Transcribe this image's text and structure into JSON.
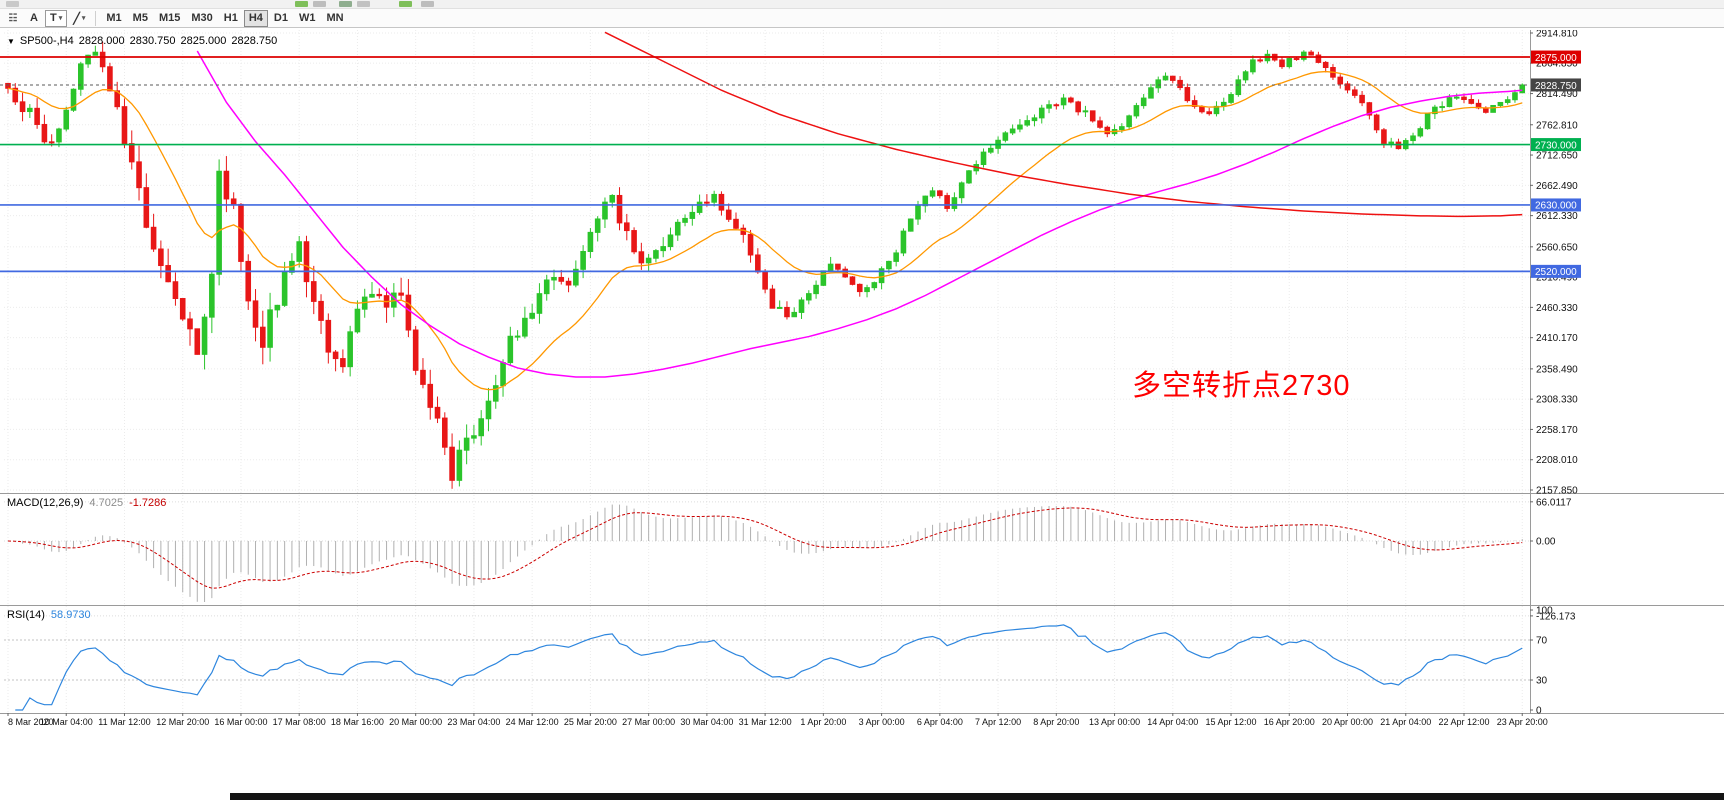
{
  "toolbar": {
    "grid_glyph": "☷",
    "caret": "▾",
    "a_label": "A",
    "t_label": "T",
    "line_glyph": "╱",
    "timeframes": [
      {
        "label": "M1",
        "active": false
      },
      {
        "label": "M5",
        "active": false
      },
      {
        "label": "M15",
        "active": false
      },
      {
        "label": "M30",
        "active": false
      },
      {
        "label": "H1",
        "active": false
      },
      {
        "label": "H4",
        "active": true
      },
      {
        "label": "D1",
        "active": false
      },
      {
        "label": "W1",
        "active": false
      },
      {
        "label": "MN",
        "active": false
      }
    ]
  },
  "header": {
    "collapse_glyph": "▼",
    "symbol": "SP500-,H4",
    "open": "2828.000",
    "high": "2830.750",
    "low": "2825.000",
    "close": "2828.750"
  },
  "annotation": {
    "text": "多空转折点2730",
    "color": "#fe0000"
  },
  "indicators": {
    "macd": {
      "title": "MACD(12,26,9)",
      "main": "4.7025",
      "signal": "-1.7286"
    },
    "rsi": {
      "title": "RSI(14)",
      "value": "58.9730"
    }
  },
  "chart_data": {
    "type": "candlestick",
    "symbol": "SP500-",
    "timeframe": "H4",
    "bars": 209,
    "last_close": 2828.75,
    "colors": {
      "up": "#2bc42b",
      "down": "#e81717",
      "grid": "#ebebeb",
      "separator": "#9a9a9a",
      "axis_text": "#111111",
      "current_line": "#5a5a5a",
      "current_box": "#454545"
    },
    "y_axis": {
      "max": 2914.81,
      "min": 2157.85,
      "labels": [
        "2914.810",
        "2864.850",
        "2814.490",
        "2762.810",
        "2712.650",
        "2662.490",
        "2612.330",
        "2560.650",
        "2510.490",
        "2460.330",
        "2410.170",
        "2358.490",
        "2308.330",
        "2258.170",
        "2208.010",
        "2157.850"
      ]
    },
    "x_axis": {
      "labels": [
        "8 Mar 2020",
        "10 Mar 04:00",
        "11 Mar 12:00",
        "12 Mar 20:00",
        "16 Mar 00:00",
        "17 Mar 08:00",
        "18 Mar 16:00",
        "20 Mar 00:00",
        "23 Mar 04:00",
        "24 Mar 12:00",
        "25 Mar 20:00",
        "27 Mar 00:00",
        "30 Mar 04:00",
        "31 Mar 12:00",
        "1 Apr 20:00",
        "3 Apr 00:00",
        "6 Apr 04:00",
        "7 Apr 12:00",
        "8 Apr 20:00",
        "13 Apr 00:00",
        "14 Apr 04:00",
        "15 Apr 12:00",
        "16 Apr 20:00",
        "20 Apr 00:00",
        "21 Apr 04:00",
        "22 Apr 12:00",
        "23 Apr 20:00"
      ]
    },
    "hlines": [
      {
        "price": 2875.0,
        "label": "2875.000",
        "color": "#dd0000"
      },
      {
        "price": 2730.0,
        "label": "2730.000",
        "color": "#00b050"
      },
      {
        "price": 2630.0,
        "label": "2630.000",
        "color": "#4169e1"
      },
      {
        "price": 2520.0,
        "label": "2520.000",
        "color": "#4169e1"
      }
    ],
    "current_price": {
      "value": 2828.75,
      "label": "2828.750"
    },
    "price_path": [
      [
        0,
        2815
      ],
      [
        3,
        2780
      ],
      [
        5,
        2725
      ],
      [
        7,
        2752
      ],
      [
        9,
        2830
      ],
      [
        11,
        2886
      ],
      [
        13,
        2856
      ],
      [
        15,
        2800
      ],
      [
        17,
        2690
      ],
      [
        19,
        2600
      ],
      [
        21,
        2545
      ],
      [
        23,
        2480
      ],
      [
        25,
        2438
      ],
      [
        26,
        2400
      ],
      [
        28,
        2520
      ],
      [
        29,
        2688
      ],
      [
        31,
        2620
      ],
      [
        33,
        2480
      ],
      [
        35,
        2400
      ],
      [
        36,
        2440
      ],
      [
        38,
        2520
      ],
      [
        40,
        2560
      ],
      [
        42,
        2480
      ],
      [
        44,
        2402
      ],
      [
        46,
        2372
      ],
      [
        48,
        2450
      ],
      [
        50,
        2498
      ],
      [
        52,
        2460
      ],
      [
        54,
        2480
      ],
      [
        56,
        2350
      ],
      [
        58,
        2290
      ],
      [
        60,
        2230
      ],
      [
        61,
        2192
      ],
      [
        63,
        2240
      ],
      [
        65,
        2282
      ],
      [
        67,
        2330
      ],
      [
        69,
        2400
      ],
      [
        71,
        2440
      ],
      [
        73,
        2480
      ],
      [
        75,
        2520
      ],
      [
        77,
        2492
      ],
      [
        79,
        2550
      ],
      [
        81,
        2610
      ],
      [
        83,
        2640
      ],
      [
        85,
        2580
      ],
      [
        87,
        2532
      ],
      [
        89,
        2552
      ],
      [
        91,
        2580
      ],
      [
        93,
        2610
      ],
      [
        95,
        2634
      ],
      [
        97,
        2640
      ],
      [
        99,
        2610
      ],
      [
        101,
        2580
      ],
      [
        103,
        2520
      ],
      [
        105,
        2466
      ],
      [
        107,
        2440
      ],
      [
        109,
        2470
      ],
      [
        111,
        2500
      ],
      [
        113,
        2526
      ],
      [
        115,
        2510
      ],
      [
        117,
        2482
      ],
      [
        119,
        2506
      ],
      [
        121,
        2532
      ],
      [
        123,
        2580
      ],
      [
        125,
        2630
      ],
      [
        127,
        2660
      ],
      [
        129,
        2622
      ],
      [
        131,
        2670
      ],
      [
        133,
        2702
      ],
      [
        135,
        2730
      ],
      [
        137,
        2746
      ],
      [
        139,
        2762
      ],
      [
        141,
        2780
      ],
      [
        143,
        2792
      ],
      [
        145,
        2806
      ],
      [
        147,
        2790
      ],
      [
        149,
        2770
      ],
      [
        151,
        2746
      ],
      [
        153,
        2762
      ],
      [
        155,
        2790
      ],
      [
        157,
        2820
      ],
      [
        159,
        2846
      ],
      [
        161,
        2820
      ],
      [
        163,
        2790
      ],
      [
        165,
        2776
      ],
      [
        167,
        2800
      ],
      [
        169,
        2832
      ],
      [
        171,
        2866
      ],
      [
        173,
        2880
      ],
      [
        175,
        2860
      ],
      [
        177,
        2876
      ],
      [
        179,
        2880
      ],
      [
        181,
        2856
      ],
      [
        183,
        2830
      ],
      [
        185,
        2810
      ],
      [
        187,
        2780
      ],
      [
        189,
        2736
      ],
      [
        191,
        2722
      ],
      [
        193,
        2746
      ],
      [
        195,
        2776
      ],
      [
        197,
        2796
      ],
      [
        199,
        2810
      ],
      [
        201,
        2800
      ],
      [
        203,
        2786
      ],
      [
        205,
        2800
      ],
      [
        207,
        2816
      ],
      [
        208,
        2828.75
      ]
    ],
    "volatility": [
      [
        0,
        28
      ],
      [
        10,
        36
      ],
      [
        17,
        52
      ],
      [
        30,
        56
      ],
      [
        45,
        46
      ],
      [
        61,
        52
      ],
      [
        70,
        36
      ],
      [
        85,
        30
      ],
      [
        100,
        26
      ],
      [
        120,
        22
      ],
      [
        140,
        18
      ],
      [
        160,
        16
      ],
      [
        180,
        15
      ],
      [
        195,
        18
      ],
      [
        208,
        10
      ]
    ],
    "ma_orange": {
      "period": 18,
      "color": "#ff9800"
    },
    "ma_magenta": {
      "color": "#ff00ff",
      "points": [
        [
          26,
          2885
        ],
        [
          30,
          2800
        ],
        [
          34,
          2735
        ],
        [
          38,
          2680
        ],
        [
          42,
          2620
        ],
        [
          46,
          2560
        ],
        [
          50,
          2510
        ],
        [
          54,
          2465
        ],
        [
          58,
          2430
        ],
        [
          62,
          2400
        ],
        [
          66,
          2378
        ],
        [
          70,
          2360
        ],
        [
          74,
          2350
        ],
        [
          78,
          2345
        ],
        [
          82,
          2345
        ],
        [
          86,
          2350
        ],
        [
          90,
          2358
        ],
        [
          94,
          2368
        ],
        [
          98,
          2380
        ],
        [
          102,
          2392
        ],
        [
          106,
          2402
        ],
        [
          110,
          2412
        ],
        [
          114,
          2425
        ],
        [
          118,
          2440
        ],
        [
          122,
          2458
        ],
        [
          126,
          2480
        ],
        [
          130,
          2505
        ],
        [
          134,
          2530
        ],
        [
          138,
          2555
        ],
        [
          142,
          2580
        ],
        [
          146,
          2602
        ],
        [
          150,
          2622
        ],
        [
          154,
          2638
        ],
        [
          158,
          2652
        ],
        [
          162,
          2665
        ],
        [
          166,
          2680
        ],
        [
          170,
          2698
        ],
        [
          174,
          2718
        ],
        [
          178,
          2740
        ],
        [
          182,
          2760
        ],
        [
          186,
          2778
        ],
        [
          190,
          2792
        ],
        [
          194,
          2802
        ],
        [
          198,
          2810
        ],
        [
          202,
          2815
        ],
        [
          206,
          2818
        ],
        [
          208,
          2820
        ]
      ]
    },
    "ma_red": {
      "color": "#ee1111",
      "points": [
        [
          82,
          2916
        ],
        [
          90,
          2868
        ],
        [
          98,
          2820
        ],
        [
          106,
          2780
        ],
        [
          114,
          2748
        ],
        [
          122,
          2722
        ],
        [
          130,
          2700
        ],
        [
          138,
          2680
        ],
        [
          146,
          2663
        ],
        [
          154,
          2648
        ],
        [
          162,
          2636
        ],
        [
          170,
          2627
        ],
        [
          178,
          2620
        ],
        [
          186,
          2615
        ],
        [
          194,
          2612
        ],
        [
          200,
          2611
        ],
        [
          205,
          2612
        ],
        [
          208,
          2614
        ]
      ]
    },
    "macd_panel": {
      "params": [
        12,
        26,
        9
      ],
      "hist_color": "#b0b0b0",
      "signal_color": "#cc0000",
      "labels": [
        {
          "v": 66.0117,
          "text": "66.0117"
        },
        {
          "v": 0,
          "text": "0.00"
        },
        {
          "v": -126.173,
          "text": "-126.173"
        }
      ]
    },
    "rsi_panel": {
      "period": 14,
      "color": "#2e86de",
      "levels": [
        {
          "v": 100,
          "text": "100",
          "dotted": false
        },
        {
          "v": 70,
          "text": "70",
          "dotted": true
        },
        {
          "v": 30,
          "text": "30",
          "dotted": true
        },
        {
          "v": 0,
          "text": "0",
          "dotted": false
        }
      ]
    }
  }
}
